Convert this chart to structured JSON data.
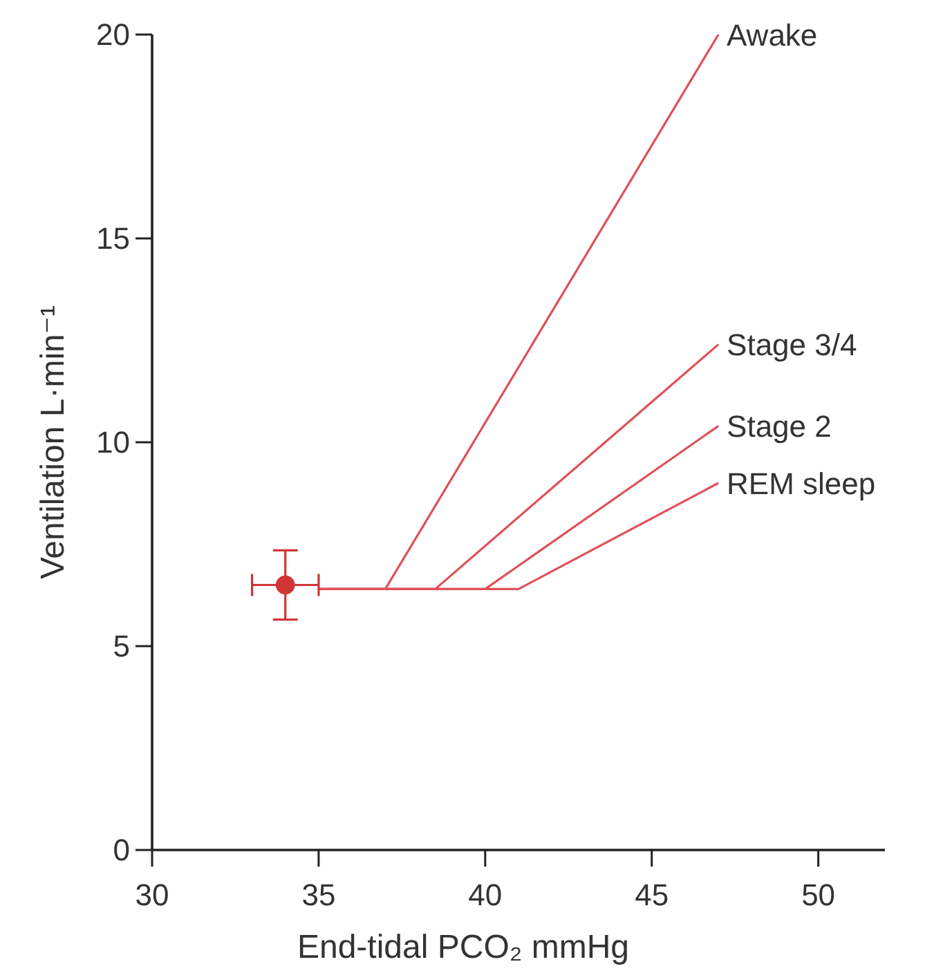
{
  "chart_data": {
    "type": "line",
    "xlabel": "End-tidal PCO₂ mmHg",
    "ylabel": "Ventilation L·min⁻¹",
    "xlim": [
      30,
      52
    ],
    "ylim": [
      0,
      20
    ],
    "xticks": [
      30,
      35,
      40,
      45,
      50
    ],
    "yticks": [
      0,
      5,
      10,
      15,
      20
    ],
    "grid": false,
    "line_style": "solid",
    "series": [
      {
        "name": "Awake",
        "color": "#e0505a",
        "x": [
          35,
          37,
          47
        ],
        "values": [
          6.4,
          6.4,
          20
        ]
      },
      {
        "name": "Stage 3/4",
        "color": "#e0505a",
        "x": [
          35,
          38.5,
          47
        ],
        "values": [
          6.4,
          6.4,
          12.4
        ]
      },
      {
        "name": "Stage 2",
        "color": "#e0505a",
        "x": [
          35,
          40,
          47
        ],
        "values": [
          6.4,
          6.4,
          10.4
        ]
      },
      {
        "name": "REM sleep",
        "color": "#e0505a",
        "x": [
          35,
          41,
          47
        ],
        "values": [
          6.4,
          6.4,
          9
        ]
      },
      {
        "type": "scatter",
        "marker": "circle",
        "color": "#d03535",
        "x": [
          34
        ],
        "values": [
          6.5
        ],
        "errors": [
          0.85
        ],
        "xerrors": [
          1
        ]
      }
    ]
  }
}
